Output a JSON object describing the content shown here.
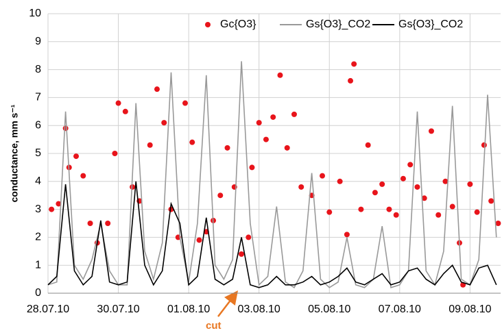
{
  "chart_data": {
    "type": "line",
    "ylabel": "conductance, mm s⁻¹",
    "annotation": "cut",
    "xlim": [
      0,
      12.87
    ],
    "ylim": [
      0,
      10
    ],
    "xticks": [
      {
        "value": 0,
        "label": "28.07.10"
      },
      {
        "value": 2,
        "label": "30.07.10"
      },
      {
        "value": 4,
        "label": "01.08.10"
      },
      {
        "value": 6,
        "label": "03.08.10"
      },
      {
        "value": 8,
        "label": "05.08.10"
      },
      {
        "value": 10,
        "label": "07.08.10"
      },
      {
        "value": 12,
        "label": "09.08.10"
      }
    ],
    "yticks": [
      0,
      1,
      2,
      3,
      4,
      5,
      6,
      7,
      8,
      9,
      10
    ],
    "grid": true,
    "series": [
      {
        "name": "Gc{O3}",
        "type": "scatter",
        "color": "#e8141b",
        "x": [
          0.1,
          0.3,
          0.5,
          0.6,
          0.8,
          1.0,
          1.2,
          1.4,
          1.7,
          1.9,
          2.0,
          2.2,
          2.4,
          2.6,
          2.9,
          3.1,
          3.3,
          3.5,
          3.7,
          3.9,
          4.1,
          4.3,
          4.5,
          4.7,
          4.9,
          5.1,
          5.3,
          5.5,
          5.7,
          5.8,
          6.0,
          6.2,
          6.4,
          6.6,
          6.8,
          7.0,
          7.2,
          7.5,
          7.8,
          8.0,
          8.3,
          8.5,
          8.6,
          8.7,
          8.9,
          9.1,
          9.3,
          9.5,
          9.7,
          9.9,
          10.1,
          10.3,
          10.5,
          10.7,
          10.9,
          11.1,
          11.3,
          11.5,
          11.7,
          11.8,
          12.0,
          12.2,
          12.4,
          12.6,
          12.8
        ],
        "values": [
          3.0,
          3.2,
          5.9,
          4.5,
          4.9,
          4.2,
          2.5,
          1.8,
          2.5,
          5.0,
          6.8,
          6.5,
          3.8,
          3.3,
          5.3,
          7.3,
          6.1,
          3.0,
          2.0,
          6.8,
          5.4,
          1.9,
          2.2,
          2.6,
          3.5,
          5.2,
          3.8,
          1.4,
          2.0,
          4.5,
          6.1,
          5.5,
          6.3,
          7.8,
          5.2,
          6.4,
          3.8,
          3.5,
          4.2,
          2.9,
          4.0,
          2.1,
          7.6,
          8.2,
          3.0,
          5.3,
          3.6,
          3.9,
          3.0,
          2.8,
          4.1,
          4.6,
          3.8,
          3.4,
          5.8,
          2.8,
          4.0,
          3.1,
          1.8,
          0.3,
          3.9,
          2.9,
          5.3,
          3.3,
          2.5
        ]
      },
      {
        "name": "Gs{O3}_CO2",
        "type": "line",
        "color": "#999999",
        "x": [
          0,
          0.25,
          0.5,
          0.75,
          1,
          1.25,
          1.5,
          1.75,
          2,
          2.25,
          2.5,
          2.75,
          3,
          3.25,
          3.5,
          3.75,
          4,
          4.25,
          4.5,
          4.75,
          5,
          5.25,
          5.5,
          5.75,
          6,
          6.25,
          6.5,
          6.75,
          7,
          7.25,
          7.5,
          7.75,
          8,
          8.25,
          8.5,
          8.75,
          9,
          9.25,
          9.5,
          9.75,
          10,
          10.25,
          10.5,
          10.75,
          11,
          11.25,
          11.5,
          11.75,
          12,
          12.25,
          12.5,
          12.75
        ],
        "values": [
          0.3,
          0.4,
          6.5,
          1.0,
          0.5,
          1.2,
          2.5,
          0.8,
          0.3,
          0.3,
          6.8,
          1.5,
          0.5,
          1.8,
          7.9,
          2.0,
          0.4,
          2.5,
          7.8,
          1.0,
          0.5,
          1.2,
          8.3,
          2.5,
          0.3,
          0.6,
          3.1,
          0.4,
          0.2,
          0.8,
          4.3,
          0.5,
          0.2,
          0.4,
          2.0,
          0.3,
          0.2,
          0.5,
          2.4,
          0.2,
          0.3,
          0.8,
          6.5,
          0.8,
          0.3,
          1.5,
          6.7,
          0.5,
          0.3,
          1.2,
          7.1,
          2.0
        ]
      },
      {
        "name": "Gs{O3}_CO2",
        "type": "line",
        "color": "#000000",
        "x": [
          0,
          0.25,
          0.5,
          0.75,
          1,
          1.25,
          1.5,
          1.75,
          2,
          2.25,
          2.5,
          2.75,
          3,
          3.25,
          3.5,
          3.75,
          4,
          4.25,
          4.5,
          4.75,
          5,
          5.25,
          5.5,
          5.75,
          6,
          6.25,
          6.5,
          6.75,
          7,
          7.25,
          7.5,
          7.75,
          8,
          8.25,
          8.5,
          8.75,
          9,
          9.25,
          9.5,
          9.75,
          10,
          10.25,
          10.5,
          10.75,
          11,
          11.25,
          11.5,
          11.75,
          12,
          12.25,
          12.5,
          12.75
        ],
        "values": [
          0.3,
          0.6,
          3.9,
          0.8,
          0.3,
          0.6,
          2.6,
          0.4,
          0.3,
          0.4,
          4.0,
          1.0,
          0.3,
          0.8,
          3.2,
          2.5,
          0.3,
          0.6,
          2.7,
          0.5,
          0.3,
          0.5,
          2.0,
          0.3,
          0.2,
          0.3,
          0.6,
          0.3,
          0.3,
          0.4,
          0.6,
          0.3,
          0.4,
          0.6,
          0.9,
          0.4,
          0.3,
          0.5,
          0.7,
          0.3,
          0.4,
          0.8,
          0.9,
          0.5,
          0.3,
          0.7,
          1.0,
          0.4,
          0.3,
          0.9,
          1.0,
          0.3
        ]
      }
    ]
  }
}
